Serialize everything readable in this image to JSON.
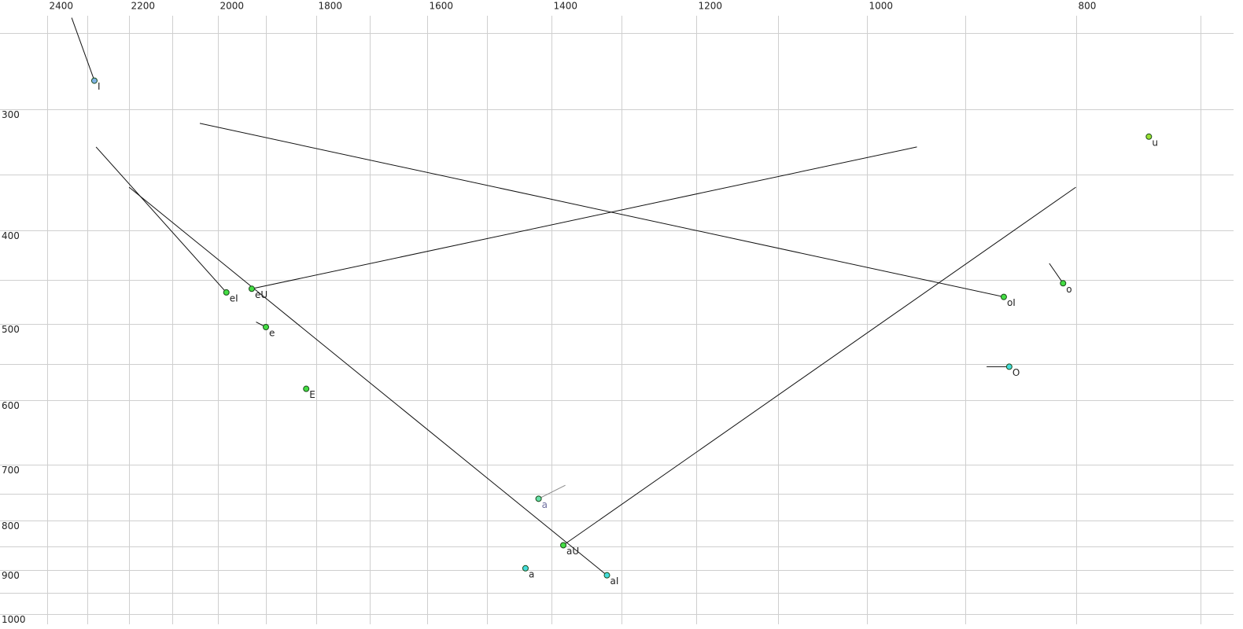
{
  "chart_data": {
    "type": "scatter",
    "xlim": [
      2524,
      676
    ],
    "ylim": [
      231,
      1024
    ],
    "xscale": "log",
    "yscale": "log",
    "grid": true,
    "xticks": [
      2400,
      2200,
      2000,
      1800,
      1600,
      1400,
      1200,
      1000,
      800
    ],
    "yticks": [
      300,
      400,
      500,
      600,
      700,
      800,
      900,
      1000
    ],
    "x_minor_ticks": [
      2300,
      2100,
      1900,
      1700,
      1500,
      1300,
      1100,
      900,
      700
    ],
    "y_minor_ticks": [
      250,
      350,
      450,
      550,
      750,
      850,
      950
    ],
    "labels": [
      "I",
      "eI",
      "eU",
      "e",
      "E",
      "oI",
      "o",
      "u",
      "O",
      "a",
      "aU",
      "a",
      "aI"
    ],
    "x": [
      2282,
      1982,
      1929,
      1900,
      1820,
      864,
      811,
      740,
      859,
      1420,
      1383,
      1440,
      1320
    ],
    "y": [
      280,
      464,
      460,
      504,
      584,
      469,
      454,
      320,
      554,
      759,
      848,
      896,
      911
    ],
    "colors": [
      "#7fb2e6",
      "#44dd44",
      "#44dd44",
      "#44dd44",
      "#44dd44",
      "#44dd44",
      "#44dd44",
      "#99e033",
      "#44dddd",
      "#66e0a8",
      "#44dd44",
      "#44dddd",
      "#44dddd"
    ],
    "label_colors": [
      "#222222",
      "#222222",
      "#222222",
      "#222222",
      "#222222",
      "#222222",
      "#222222",
      "#222222",
      "#222222",
      "#7070a0",
      "#222222",
      "#222222",
      "#222222"
    ],
    "tracks": [
      {
        "x": [
          2338,
          2282
        ],
        "y": [
          241,
          280
        ],
        "color": "#111111"
      },
      {
        "x": [
          2278,
          1982
        ],
        "y": [
          328,
          464
        ],
        "color": "#111111"
      },
      {
        "x": [
          1929,
          948
        ],
        "y": [
          460,
          328
        ],
        "color": "#111111"
      },
      {
        "x": [
          1920,
          1900
        ],
        "y": [
          498,
          504
        ],
        "color": "#111111"
      },
      {
        "x": [
          2039,
          864
        ],
        "y": [
          310,
          469
        ],
        "color": "#111111"
      },
      {
        "x": [
          823,
          811
        ],
        "y": [
          433,
          454
        ],
        "color": "#111111"
      },
      {
        "x": [
          880,
          859
        ],
        "y": [
          554,
          554
        ],
        "color": "#111111"
      },
      {
        "x": [
          1380,
          1420
        ],
        "y": [
          735,
          759
        ],
        "color": "#888888"
      },
      {
        "x": [
          800,
          1383
        ],
        "y": [
          361,
          848
        ],
        "color": "#111111"
      },
      {
        "x": [
          2199,
          1320
        ],
        "y": [
          361,
          911
        ],
        "color": "#111111"
      }
    ]
  }
}
